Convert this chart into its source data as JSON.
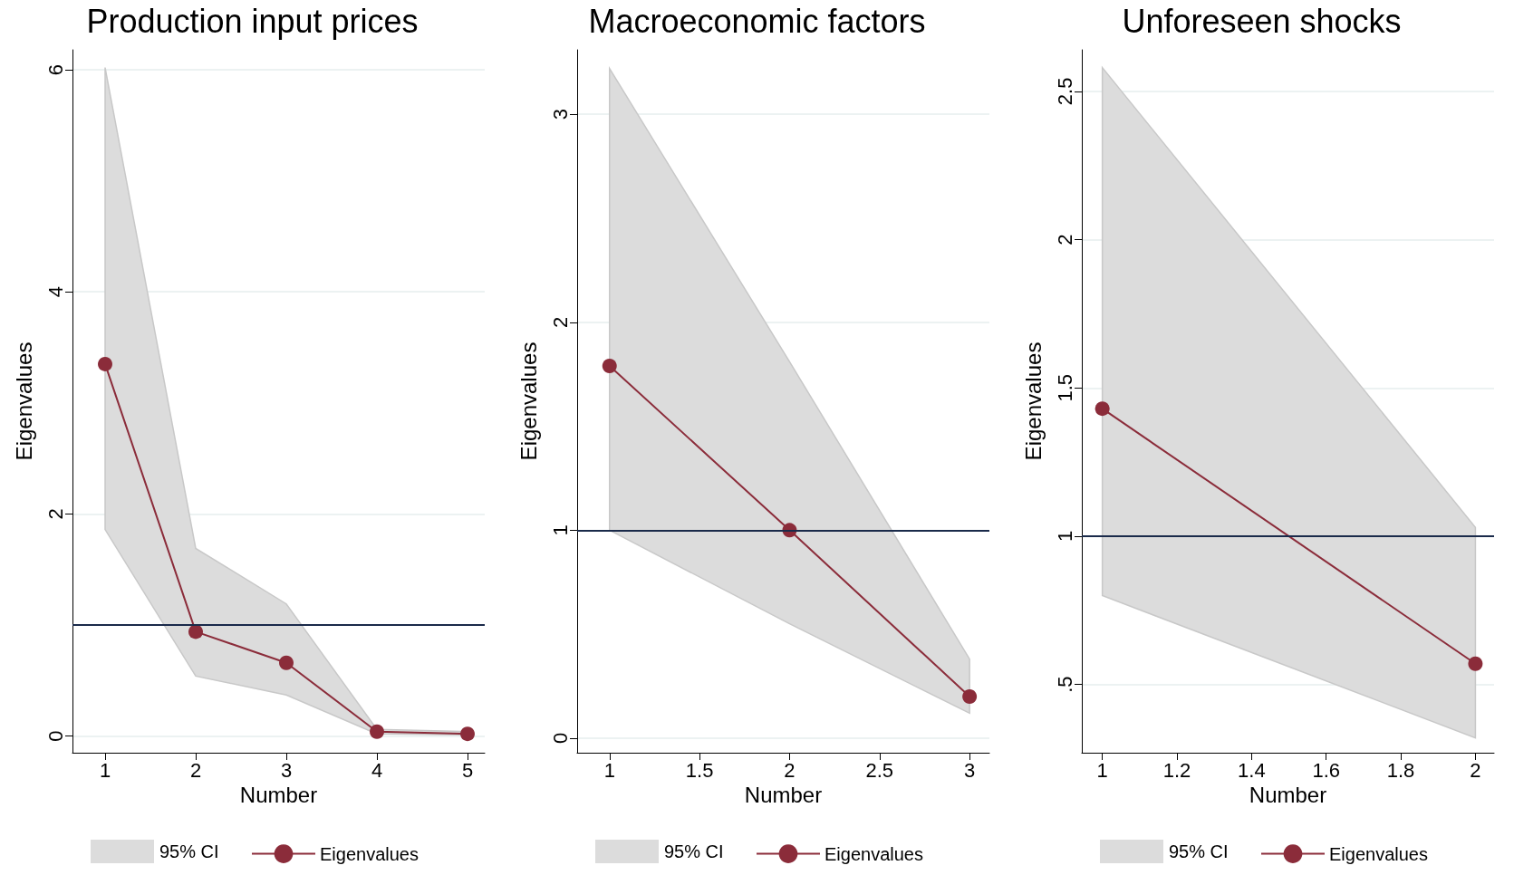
{
  "chart_data": [
    {
      "type": "line",
      "title": "Production input prices",
      "xlabel": "Number",
      "ylabel": "Eigenvalues",
      "x": [
        1,
        2,
        3,
        4,
        5
      ],
      "xlim": [
        0.64,
        5.19
      ],
      "xticks": [
        1,
        2,
        3,
        4,
        5
      ],
      "ylim": [
        -0.15,
        6.18
      ],
      "yticks": [
        0,
        2,
        4,
        6
      ],
      "grid": "y",
      "legend": "bottom",
      "marker": "circle",
      "annotations": [
        "95% CI"
      ],
      "series": [
        {
          "name": "Eigenvalues",
          "color": "#8b2c3a",
          "values": [
            3.35,
            0.94,
            0.66,
            0.04,
            0.02
          ],
          "lower": [
            1.86,
            0.54,
            0.37,
            0.02,
            0.01
          ],
          "upper": [
            6.02,
            1.69,
            1.19,
            0.06,
            0.04
          ]
        }
      ],
      "ref_lines": [
        {
          "axis": "y",
          "value": 1,
          "color": "#1a2a4a"
        }
      ]
    },
    {
      "type": "line",
      "title": "Macroeconomic factors",
      "xlabel": "Number",
      "ylabel": "Eigenvalues",
      "x": [
        1,
        2,
        3
      ],
      "xlim": [
        0.82,
        3.11
      ],
      "xticks": [
        1,
        1.5,
        2,
        2.5,
        3
      ],
      "ylim": [
        -0.07,
        3.31
      ],
      "yticks": [
        0,
        1,
        2,
        3
      ],
      "grid": "y",
      "legend": "bottom",
      "marker": "circle",
      "annotations": [
        "95% CI"
      ],
      "series": [
        {
          "name": "Eigenvalues",
          "color": "#8b2c3a",
          "values": [
            1.79,
            1.0,
            0.2
          ],
          "lower": [
            1.0,
            0.55,
            0.12
          ],
          "upper": [
            3.22,
            1.81,
            0.38
          ]
        }
      ],
      "ref_lines": [
        {
          "axis": "y",
          "value": 1,
          "color": "#1a2a4a"
        }
      ]
    },
    {
      "type": "line",
      "title": "Unforeseen shocks",
      "xlabel": "Number",
      "ylabel": "Eigenvalues",
      "x": [
        1,
        2
      ],
      "xlim": [
        0.945,
        2.05
      ],
      "xticks": [
        1,
        1.2,
        1.4,
        1.6,
        1.8,
        2
      ],
      "ylim": [
        0.27,
        2.64
      ],
      "yticks": [
        {
          "value": 0.5,
          "label": ".5"
        },
        1,
        1.5,
        2,
        2.5
      ],
      "grid": "y",
      "legend": "bottom",
      "marker": "circle",
      "annotations": [
        "95% CI"
      ],
      "series": [
        {
          "name": "Eigenvalues",
          "color": "#8b2c3a",
          "values": [
            1.43,
            0.57
          ],
          "lower": [
            0.8,
            0.32
          ],
          "upper": [
            2.58,
            1.03
          ]
        }
      ],
      "ref_lines": [
        {
          "axis": "y",
          "value": 1,
          "color": "#1a2a4a"
        }
      ]
    }
  ]
}
